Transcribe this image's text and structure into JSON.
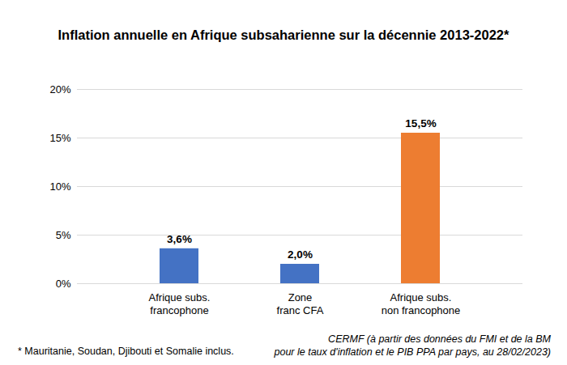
{
  "chart_data": {
    "type": "bar",
    "title": "Inflation annuelle en Afrique subsaharienne sur la décennie 2013-2022*",
    "categories": [
      "Afrique subs.\nfrancophone",
      "Zone\nfranc CFA",
      "Afrique subs.\nnon francophone"
    ],
    "values": [
      3.6,
      2.0,
      15.5
    ],
    "value_labels": [
      "3,6%",
      "2,0%",
      "15,5%"
    ],
    "colors": [
      "#4472c4",
      "#4472c4",
      "#ed7d31"
    ],
    "ylim": [
      0,
      20
    ],
    "yticks": [
      {
        "value": 0,
        "label": "0%"
      },
      {
        "value": 5,
        "label": "5%"
      },
      {
        "value": 10,
        "label": "10%"
      },
      {
        "value": 15,
        "label": "15%"
      },
      {
        "value": 20,
        "label": "20%"
      }
    ],
    "grid": true,
    "data_labels": true,
    "footnote": "* Mauritanie, Soudan, Djibouti et Somalie inclus.",
    "source": "CERMF (à partir des données du FMI et de la BM\npour le taux d'inflation et le PIB PPA par pays, au 28/02/2023)"
  }
}
